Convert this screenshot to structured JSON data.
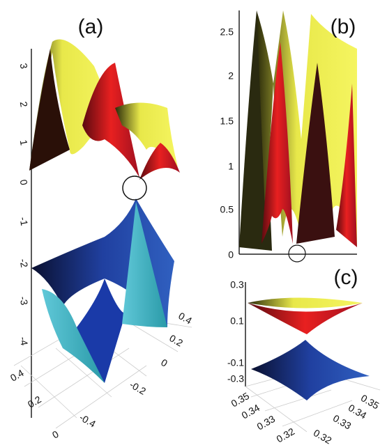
{
  "panels": [
    {
      "label": "(a)",
      "z_ticks": [
        "3",
        "2",
        "1",
        "0",
        "-1",
        "-2",
        "-3",
        "-4"
      ],
      "x_ticks": [
        "0.4",
        "0.2",
        "0"
      ],
      "y_ticks": [
        "-0.4",
        "-0.2",
        "0",
        "0.2",
        "0.4"
      ]
    },
    {
      "label": "(b)",
      "y_ticks": [
        "2.5",
        "2",
        "1.5",
        "1",
        "0.5",
        "0"
      ]
    },
    {
      "label": "(c)",
      "z_ticks": [
        "0.3",
        "0.1",
        "-0.1",
        "-0.3"
      ],
      "x_ticks": [
        "0.35",
        "0.34",
        "0.33",
        "0.32"
      ],
      "y_ticks": [
        "0.35",
        "0.34",
        "0.33",
        "0.32"
      ]
    }
  ]
}
